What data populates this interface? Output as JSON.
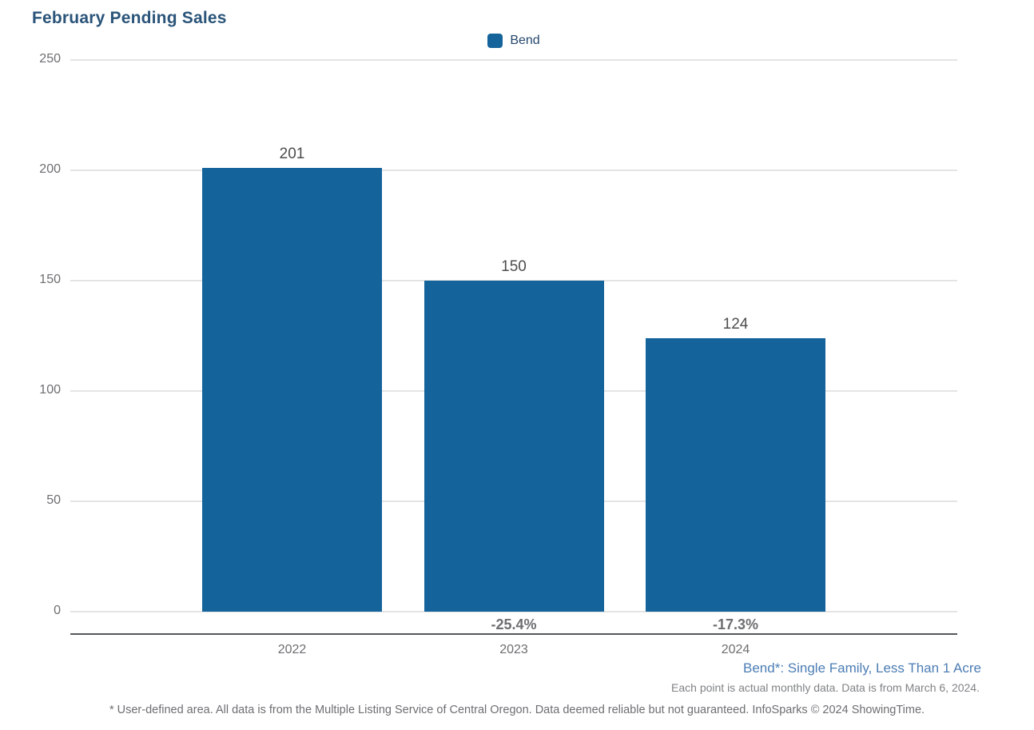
{
  "header": {
    "title": "February Pending Sales"
  },
  "legend": {
    "items": [
      {
        "label": "Bend",
        "color": "#15639B",
        "swatch": "rounded-square"
      }
    ]
  },
  "chart_data": {
    "type": "bar",
    "title": "February Pending Sales",
    "categories": [
      "2022",
      "2023",
      "2024"
    ],
    "series": [
      {
        "name": "Bend",
        "values": [
          201,
          150,
          124
        ]
      }
    ],
    "value_labels": [
      "201",
      "150",
      "124"
    ],
    "pct_change_labels": [
      "",
      "-25.4%",
      "-17.3%"
    ],
    "ylim": [
      0,
      250
    ],
    "yticks": [
      0,
      50,
      100,
      150,
      200,
      250
    ],
    "grid": "horizontal",
    "legend_position": "top-center",
    "bar_color": "#15639B"
  },
  "notes": {
    "series_definition": "Bend*: Single Family, Less Than 1 Acre",
    "data_note": "Each point is actual monthly data. Data is from March 6, 2024.",
    "footer": "* User-defined area. All data is from the Multiple Listing Service of Central Oregon. Data deemed reliable but not guaranteed. InfoSparks © 2024 ShowingTime."
  },
  "colors": {
    "bar": "#15639B",
    "title": "#2A5479",
    "legend_text": "#24476B",
    "gridline": "#E4E4E4",
    "axis_line": "#54585A",
    "tick_text": "#6D6E71",
    "value_text": "#4D4D4F",
    "note_blue": "#4C7DB4",
    "note_gray": "#808285"
  }
}
